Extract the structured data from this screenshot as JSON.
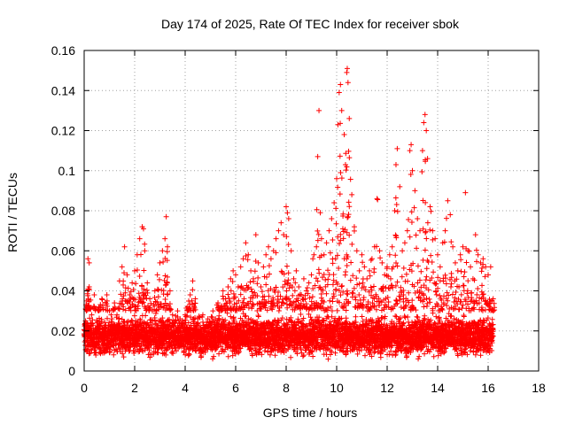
{
  "chart_data": {
    "type": "scatter",
    "title": "Day 174 of 2025, Rate Of TEC Index for receiver sbok",
    "xlabel": "GPS time / hours",
    "ylabel": "ROTI / TECUs",
    "xlim": [
      0,
      18
    ],
    "ylim": [
      0,
      0.16
    ],
    "x_ticks": [
      0,
      2,
      4,
      6,
      8,
      10,
      12,
      14,
      16,
      18
    ],
    "x_tick_labels": [
      "0",
      "2",
      "4",
      "6",
      "8",
      "10",
      "12",
      "14",
      "16",
      "18"
    ],
    "y_ticks": [
      0,
      0.02,
      0.04,
      0.06,
      0.08,
      0.1,
      0.12,
      0.14,
      0.16
    ],
    "y_tick_labels": [
      "0",
      "0.02",
      "0.04",
      "0.06",
      "0.08",
      "0.1",
      "0.12",
      "0.14",
      "0.16"
    ],
    "grid": true,
    "legend": "none",
    "marker": "plus",
    "colors": {
      "points": "#ff0000",
      "grid": "#a0a0a0",
      "axes": "#000000"
    },
    "series": [
      {
        "points": [
          [
            0.05,
            0.018
          ],
          [
            0.1,
            0.035
          ],
          [
            0.15,
            0.056
          ],
          [
            0.2,
            0.054
          ],
          [
            0.2,
            0.042
          ],
          [
            0.3,
            0.028
          ],
          [
            0.4,
            0.038
          ],
          [
            0.5,
            0.024
          ],
          [
            0.6,
            0.032
          ],
          [
            0.7,
            0.036
          ],
          [
            0.8,
            0.022
          ],
          [
            0.9,
            0.038
          ],
          [
            1.0,
            0.03
          ],
          [
            1.1,
            0.026
          ],
          [
            1.2,
            0.034
          ],
          [
            1.3,
            0.028
          ],
          [
            1.4,
            0.045
          ],
          [
            1.5,
            0.052
          ],
          [
            1.6,
            0.062
          ],
          [
            1.7,
            0.048
          ],
          [
            1.8,
            0.038
          ],
          [
            1.9,
            0.044
          ],
          [
            2.0,
            0.05
          ],
          [
            2.1,
            0.058
          ],
          [
            2.2,
            0.066
          ],
          [
            2.3,
            0.072
          ],
          [
            2.35,
            0.071
          ],
          [
            2.4,
            0.06
          ],
          [
            2.5,
            0.044
          ],
          [
            2.6,
            0.036
          ],
          [
            2.7,
            0.03
          ],
          [
            2.8,
            0.04
          ],
          [
            2.9,
            0.048
          ],
          [
            3.0,
            0.054
          ],
          [
            3.1,
            0.06
          ],
          [
            3.2,
            0.066
          ],
          [
            3.25,
            0.077
          ],
          [
            3.3,
            0.062
          ],
          [
            3.4,
            0.04
          ],
          [
            3.5,
            0.028
          ],
          [
            3.6,
            0.024
          ],
          [
            3.7,
            0.03
          ],
          [
            3.8,
            0.026
          ],
          [
            3.9,
            0.022
          ],
          [
            4.0,
            0.028
          ],
          [
            4.1,
            0.032
          ],
          [
            4.2,
            0.038
          ],
          [
            4.3,
            0.045
          ],
          [
            4.4,
            0.036
          ],
          [
            4.5,
            0.026
          ],
          [
            4.6,
            0.022
          ],
          [
            4.7,
            0.028
          ],
          [
            4.8,
            0.022
          ],
          [
            4.9,
            0.026
          ],
          [
            5.0,
            0.024
          ],
          [
            5.1,
            0.03
          ],
          [
            5.2,
            0.026
          ],
          [
            5.3,
            0.034
          ],
          [
            5.4,
            0.032
          ],
          [
            5.5,
            0.04
          ],
          [
            5.6,
            0.036
          ],
          [
            5.7,
            0.042
          ],
          [
            5.8,
            0.046
          ],
          [
            5.9,
            0.05
          ],
          [
            6.0,
            0.048
          ],
          [
            6.1,
            0.042
          ],
          [
            6.2,
            0.052
          ],
          [
            6.3,
            0.056
          ],
          [
            6.4,
            0.064
          ],
          [
            6.5,
            0.058
          ],
          [
            6.6,
            0.05
          ],
          [
            6.7,
            0.046
          ],
          [
            6.8,
            0.068
          ],
          [
            6.9,
            0.054
          ],
          [
            7.0,
            0.042
          ],
          [
            7.1,
            0.052
          ],
          [
            7.2,
            0.058
          ],
          [
            7.3,
            0.062
          ],
          [
            7.4,
            0.056
          ],
          [
            7.5,
            0.06
          ],
          [
            7.6,
            0.066
          ],
          [
            7.7,
            0.07
          ],
          [
            7.8,
            0.074
          ],
          [
            7.9,
            0.068
          ],
          [
            8.0,
            0.082
          ],
          [
            8.05,
            0.079
          ],
          [
            8.1,
            0.076
          ],
          [
            8.2,
            0.06
          ],
          [
            8.3,
            0.046
          ],
          [
            8.4,
            0.05
          ],
          [
            8.5,
            0.042
          ],
          [
            8.6,
            0.038
          ],
          [
            8.7,
            0.046
          ],
          [
            8.8,
            0.04
          ],
          [
            8.9,
            0.044
          ],
          [
            9.0,
            0.048
          ],
          [
            9.1,
            0.058
          ],
          [
            9.2,
            0.062
          ],
          [
            9.25,
            0.107
          ],
          [
            9.3,
            0.13
          ],
          [
            9.35,
            0.079
          ],
          [
            9.4,
            0.066
          ],
          [
            9.5,
            0.058
          ],
          [
            9.6,
            0.064
          ],
          [
            9.7,
            0.07
          ],
          [
            9.8,
            0.076
          ],
          [
            9.9,
            0.084
          ],
          [
            10.0,
            0.096
          ],
          [
            10.05,
            0.123
          ],
          [
            10.1,
            0.139
          ],
          [
            10.15,
            0.143
          ],
          [
            10.2,
            0.13
          ],
          [
            10.3,
            0.118
          ],
          [
            10.35,
            0.103
          ],
          [
            10.4,
            0.149
          ],
          [
            10.42,
            0.151
          ],
          [
            10.45,
            0.144
          ],
          [
            10.5,
            0.126
          ],
          [
            10.6,
            0.088
          ],
          [
            10.7,
            0.072
          ],
          [
            10.8,
            0.06
          ],
          [
            10.9,
            0.05
          ],
          [
            11.0,
            0.058
          ],
          [
            11.1,
            0.052
          ],
          [
            11.2,
            0.046
          ],
          [
            11.3,
            0.05
          ],
          [
            11.4,
            0.056
          ],
          [
            11.5,
            0.062
          ],
          [
            11.6,
            0.086
          ],
          [
            11.7,
            0.06
          ],
          [
            11.8,
            0.054
          ],
          [
            11.9,
            0.048
          ],
          [
            12.0,
            0.052
          ],
          [
            12.1,
            0.058
          ],
          [
            12.2,
            0.062
          ],
          [
            12.3,
            0.08
          ],
          [
            12.35,
            0.103
          ],
          [
            12.4,
            0.111
          ],
          [
            12.5,
            0.092
          ],
          [
            12.6,
            0.06
          ],
          [
            12.7,
            0.064
          ],
          [
            12.8,
            0.07
          ],
          [
            12.9,
            0.11
          ],
          [
            12.95,
            0.113
          ],
          [
            13.0,
            0.1
          ],
          [
            13.1,
            0.09
          ],
          [
            13.2,
            0.076
          ],
          [
            13.3,
            0.07
          ],
          [
            13.4,
            0.11
          ],
          [
            13.45,
            0.124
          ],
          [
            13.5,
            0.128
          ],
          [
            13.55,
            0.12
          ],
          [
            13.6,
            0.106
          ],
          [
            13.7,
            0.082
          ],
          [
            13.8,
            0.07
          ],
          [
            13.9,
            0.066
          ],
          [
            14.0,
            0.058
          ],
          [
            14.1,
            0.052
          ],
          [
            14.2,
            0.064
          ],
          [
            14.3,
            0.07
          ],
          [
            14.4,
            0.085
          ],
          [
            14.5,
            0.078
          ],
          [
            14.6,
            0.062
          ],
          [
            14.7,
            0.054
          ],
          [
            14.8,
            0.05
          ],
          [
            14.9,
            0.058
          ],
          [
            15.0,
            0.062
          ],
          [
            15.1,
            0.089
          ],
          [
            15.2,
            0.06
          ],
          [
            15.3,
            0.052
          ],
          [
            15.4,
            0.046
          ],
          [
            15.5,
            0.068
          ],
          [
            15.6,
            0.058
          ],
          [
            15.7,
            0.054
          ],
          [
            15.8,
            0.056
          ],
          [
            15.9,
            0.052
          ],
          [
            16.0,
            0.048
          ],
          [
            16.1,
            0.052
          ],
          [
            16.2,
            0.036
          ],
          [
            16.2,
            0.03
          ]
        ],
        "band": {
          "description_values": "dense cluster of points each 0.01 h from 0 to 16.2 h",
          "x_start": 0,
          "x_end": 16.2,
          "x_step": 0.01,
          "y_min": 0.005,
          "y_max": 0.03,
          "y_typical": 0.016
        }
      }
    ]
  }
}
